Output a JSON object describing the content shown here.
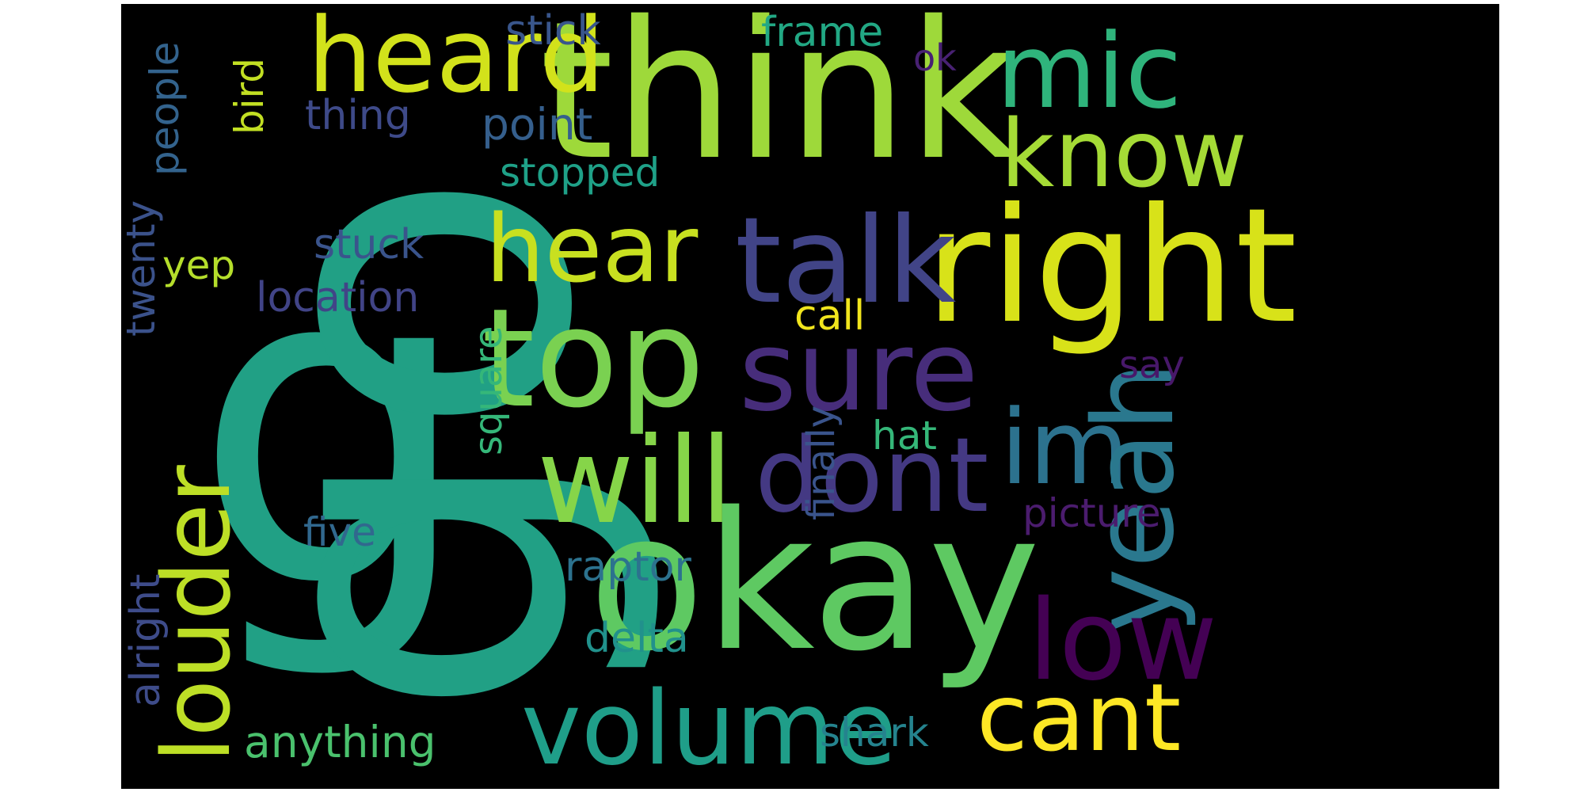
{
  "palette": [
    "#440154",
    "#472d7b",
    "#3b528b",
    "#2c728e",
    "#21918c",
    "#28ae80",
    "#5ec962",
    "#addc30",
    "#fde725"
  ],
  "words": [
    {
      "text": "go",
      "color": "#21a085"
    },
    {
      "text": "think",
      "color": "#9ed93a"
    },
    {
      "text": "okay",
      "color": "#5ec962"
    },
    {
      "text": "right",
      "color": "#d8e219"
    },
    {
      "text": "top",
      "color": "#7ad151"
    },
    {
      "text": "will",
      "color": "#86d549"
    },
    {
      "text": "talk",
      "color": "#414487"
    },
    {
      "text": "heard",
      "color": "#d2e21b"
    },
    {
      "text": "hear",
      "color": "#c8e020"
    },
    {
      "text": "mic",
      "color": "#2fb47c"
    },
    {
      "text": "know",
      "color": "#a5db36"
    },
    {
      "text": "sure",
      "color": "#472d7b"
    },
    {
      "text": "dont",
      "color": "#443983"
    },
    {
      "text": "im",
      "color": "#2c728e"
    },
    {
      "text": "yeah",
      "color": "#2a788e"
    },
    {
      "text": "low",
      "color": "#440154"
    },
    {
      "text": "volume",
      "color": "#1f9e89"
    },
    {
      "text": "cant",
      "color": "#fde725"
    },
    {
      "text": "louder",
      "color": "#bddf26"
    },
    {
      "text": "stick",
      "color": "#39568c"
    },
    {
      "text": "frame",
      "color": "#22a884"
    },
    {
      "text": "ok",
      "color": "#482173"
    },
    {
      "text": "point",
      "color": "#355f8d"
    },
    {
      "text": "thing",
      "color": "#3e4a89"
    },
    {
      "text": "stopped",
      "color": "#1fa188"
    },
    {
      "text": "stuck",
      "color": "#3a548c"
    },
    {
      "text": "location",
      "color": "#414487"
    },
    {
      "text": "yep",
      "color": "#b5de2b"
    },
    {
      "text": "call",
      "color": "#f1e51d"
    },
    {
      "text": "say",
      "color": "#48186a"
    },
    {
      "text": "hat",
      "color": "#35b779"
    },
    {
      "text": "picture",
      "color": "#4b1c6e"
    },
    {
      "text": "five",
      "color": "#31688e"
    },
    {
      "text": "raptor",
      "color": "#2c728e"
    },
    {
      "text": "delta",
      "color": "#21918c"
    },
    {
      "text": "shark",
      "color": "#25838e"
    },
    {
      "text": "anything",
      "color": "#4ac16d"
    },
    {
      "text": "people",
      "color": "#33638d"
    },
    {
      "text": "bird",
      "color": "#c2df23"
    },
    {
      "text": "twenty",
      "color": "#3b528b"
    },
    {
      "text": "alright",
      "color": "#3e4c8a"
    },
    {
      "text": "square",
      "color": "#35b779"
    },
    {
      "text": "finally",
      "color": "#3a548c"
    }
  ]
}
